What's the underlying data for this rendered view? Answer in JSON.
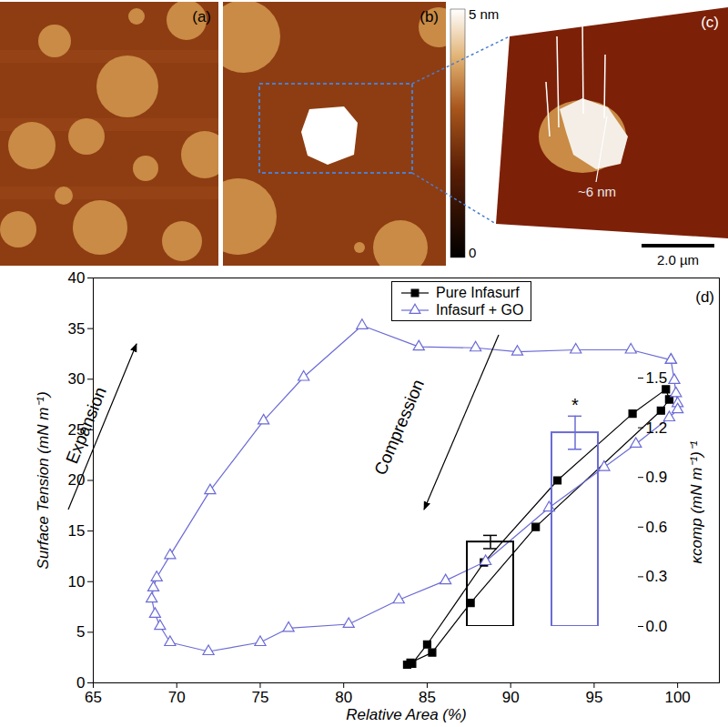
{
  "chart_data": [
    {
      "type": "line",
      "title": "(d)",
      "x_label": "Relative Area (%)",
      "y_label": "Surface Tension (mN m⁻¹)",
      "xlim": [
        65,
        102.5
      ],
      "xticks": [
        65,
        70,
        75,
        80,
        85,
        90,
        95,
        100
      ],
      "ylim": [
        0,
        40
      ],
      "yticks": [
        0,
        5,
        10,
        15,
        20,
        25,
        30,
        35,
        40
      ],
      "legend": "top",
      "annotations": [
        "Expansion",
        "Compression"
      ],
      "series": [
        {
          "name": "Pure Infasurf",
          "color": "#000000",
          "marker": "square",
          "x": [
            99.5,
            99.0,
            91.5,
            87.6,
            85.3,
            84.0,
            83.8,
            84.1,
            85.0,
            88.4,
            92.8,
            97.3,
            99.3,
            99.5
          ],
          "values": [
            28.0,
            26.9,
            15.4,
            7.9,
            3.0,
            2.0,
            1.8,
            1.9,
            3.8,
            11.9,
            20.0,
            26.6,
            29.0,
            28.0
          ]
        },
        {
          "name": "Infasurf + GO",
          "color": "#6b6bd6",
          "marker": "triangle-open",
          "x": [
            99.6,
            99.8,
            99.9,
            100.0,
            100.0,
            99.5,
            97.5,
            95.6,
            92.3,
            88.5,
            86.1,
            83.3,
            80.3,
            76.7,
            75.0,
            71.9,
            69.6,
            69.0,
            68.7,
            68.5,
            68.6,
            68.8,
            69.6,
            72.0,
            75.2,
            77.6,
            81.1,
            84.5,
            87.9,
            90.4,
            93.9,
            97.2,
            99.6
          ],
          "values": [
            31.9,
            29.9,
            28.6,
            27.6,
            27.0,
            26.2,
            23.6,
            21.3,
            17.3,
            12.0,
            10.1,
            8.2,
            5.8,
            5.4,
            4.0,
            3.1,
            4.0,
            5.6,
            6.8,
            8.3,
            9.4,
            10.4,
            12.6,
            19.0,
            25.9,
            30.2,
            35.3,
            33.2,
            33.1,
            32.7,
            32.9,
            32.9,
            31.9
          ]
        }
      ]
    },
    {
      "type": "bar",
      "y_label": "κcomp (mN m⁻¹)⁻¹",
      "categories": [
        null,
        null
      ],
      "values": [
        0.51,
        1.17
      ],
      "errors": [
        0.04,
        0.1
      ],
      "colors": [
        "#000000",
        "#6b6bd6"
      ],
      "significance": [
        null,
        "*"
      ],
      "ylim": [
        0,
        1.5
      ],
      "yticks": [
        {
          "value": 0,
          "label": "0.0"
        },
        0.3,
        0.6,
        0.9,
        1.2,
        1.5
      ],
      "tick_labels": "y"
    }
  ],
  "images": [
    {
      "label": "(a)"
    },
    {
      "label": "(b)",
      "colorbar": {
        "range": [
          0,
          5
        ],
        "ticks": [
          {
            "value": 5,
            "label": "5 nm"
          },
          0
        ]
      }
    },
    {
      "label": "(c)",
      "height_marker": {
        "value": 6,
        "label": "~6 nm"
      },
      "scale_bar": {
        "value": 2.0,
        "label": "2.0 µm"
      }
    }
  ]
}
